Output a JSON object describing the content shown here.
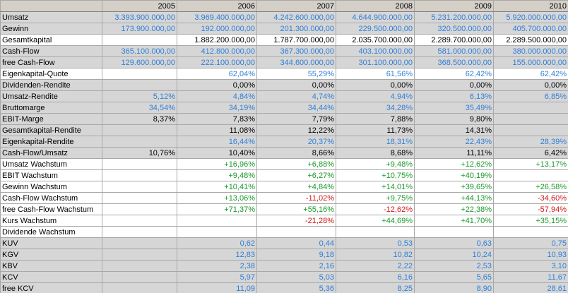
{
  "header": {
    "years": [
      "2005",
      "2006",
      "2007",
      "2008",
      "2009",
      "2010"
    ]
  },
  "colors": {
    "blue": "#2f7fd8",
    "black": "#000000",
    "positive": "#1a9a2a",
    "negative": "#d01818"
  },
  "rows": [
    {
      "label": "Umsatz",
      "color": "blue",
      "shaded": true,
      "values": [
        "3.393.900.000,00",
        "3.969.400.000,00",
        "4.242.600.000,00",
        "4.644.900.000,00",
        "5.231.200.000,00",
        "5.920.000.000,00"
      ]
    },
    {
      "label": "Gewinn",
      "color": "blue",
      "shaded": true,
      "values": [
        "173.900.000,00",
        "192.000.000,00",
        "201.300.000,00",
        "229.500.000,00",
        "320.500.000,00",
        "405.700.000,00"
      ]
    },
    {
      "label": "Gesamtkapital",
      "color": "black",
      "shaded": false,
      "values": [
        null,
        "1.882.200.000,00",
        "1.787.700.000,00",
        "2.035.700.000,00",
        "2.289.700.000,00",
        "2.289.500.000,00"
      ]
    },
    {
      "label": "Cash-Flow",
      "color": "blue",
      "shaded": true,
      "values": [
        "365.100.000,00",
        "412.800.000,00",
        "367.300.000,00",
        "403.100.000,00",
        "581.000.000,00",
        "380.000.000,00"
      ]
    },
    {
      "label": "free Cash-Flow",
      "color": "blue",
      "shaded": true,
      "values": [
        "129.600.000,00",
        "222.100.000,00",
        "344.600.000,00",
        "301.100.000,00",
        "368.500.000,00",
        "155.000.000,00"
      ]
    },
    {
      "label": "Eigenkapital-Quote",
      "color": "blue",
      "shaded": false,
      "values": [
        null,
        "62,04%",
        "55,29%",
        "61,56%",
        "62,42%",
        "62,42%"
      ]
    },
    {
      "label": "Dividenden-Rendite",
      "color": "black",
      "shaded": true,
      "values": [
        null,
        "0,00%",
        "0,00%",
        "0,00%",
        "0,00%",
        "0,00%"
      ]
    },
    {
      "label": "Umsatz-Rendite",
      "color": "blue",
      "shaded": true,
      "values": [
        "5,12%",
        "4,84%",
        "4,74%",
        "4,94%",
        "6,13%",
        "6,85%"
      ]
    },
    {
      "label": "Bruttomarge",
      "color": "blue",
      "shaded": true,
      "values": [
        "34,54%",
        "34,19%",
        "34,44%",
        "34,28%",
        "35,49%",
        null
      ]
    },
    {
      "label": "EBIT-Marge",
      "color": "black",
      "shaded": true,
      "values": [
        "8,37%",
        "7,83%",
        "7,79%",
        "7,88%",
        "9,80%",
        null
      ]
    },
    {
      "label": "Gesamtkapital-Rendite",
      "color": "black",
      "shaded": true,
      "values": [
        null,
        "11,08%",
        "12,22%",
        "11,73%",
        "14,31%",
        null
      ]
    },
    {
      "label": "Eigenkapital-Rendite",
      "color": "blue",
      "shaded": true,
      "values": [
        null,
        "16,44%",
        "20,37%",
        "18,31%",
        "22,43%",
        "28,39%"
      ]
    },
    {
      "label": "Cash-Flow/Umsatz",
      "color": "black",
      "shaded": true,
      "values": [
        "10,76%",
        "10,40%",
        "8,66%",
        "8,68%",
        "11,11%",
        "6,42%"
      ]
    },
    {
      "label": "Umsatz Wachstum",
      "color": "signed",
      "shaded": false,
      "values": [
        null,
        "+16,96%",
        "+6,88%",
        "+9,48%",
        "+12,62%",
        "+13,17%"
      ]
    },
    {
      "label": "EBIT Wachstum",
      "color": "signed",
      "shaded": false,
      "values": [
        null,
        "+9,48%",
        "+6,27%",
        "+10,75%",
        "+40,19%",
        null
      ]
    },
    {
      "label": "Gewinn Wachstum",
      "color": "signed",
      "shaded": false,
      "values": [
        null,
        "+10,41%",
        "+4,84%",
        "+14,01%",
        "+39,65%",
        "+26,58%"
      ]
    },
    {
      "label": "Cash-Flow Wachstum",
      "color": "signed",
      "shaded": false,
      "values": [
        null,
        "+13,06%",
        "-11,02%",
        "+9,75%",
        "+44,13%",
        "-34,60%"
      ]
    },
    {
      "label": "free Cash-Flow Wachstum",
      "color": "signed",
      "shaded": false,
      "values": [
        null,
        "+71,37%",
        "+55,16%",
        "-12,62%",
        "+22,38%",
        "-57,94%"
      ]
    },
    {
      "label": "Kurs Wachstum",
      "color": "signed",
      "shaded": false,
      "values": [
        null,
        null,
        "-21,28%",
        "+44,69%",
        "+41,70%",
        "+35,15%"
      ]
    },
    {
      "label": "Dividende Wachstum",
      "color": "signed",
      "shaded": false,
      "values": [
        null,
        null,
        null,
        null,
        null,
        null
      ]
    },
    {
      "label": "KUV",
      "color": "blue",
      "shaded": true,
      "values": [
        null,
        "0,62",
        "0,44",
        "0,53",
        "0,63",
        "0,75"
      ]
    },
    {
      "label": "KGV",
      "color": "blue",
      "shaded": true,
      "values": [
        null,
        "12,83",
        "9,18",
        "10,82",
        "10,24",
        "10,93"
      ]
    },
    {
      "label": "KBV",
      "color": "blue",
      "shaded": true,
      "values": [
        null,
        "2,38",
        "2,16",
        "2,22",
        "2,53",
        "3,10"
      ]
    },
    {
      "label": "KCV",
      "color": "blue",
      "shaded": true,
      "values": [
        null,
        "5,97",
        "5,03",
        "6,16",
        "5,65",
        "11,67"
      ]
    },
    {
      "label": "free KCV",
      "color": "blue",
      "shaded": true,
      "values": [
        null,
        "11,09",
        "5,36",
        "8,25",
        "8,90",
        "28,61"
      ]
    }
  ]
}
